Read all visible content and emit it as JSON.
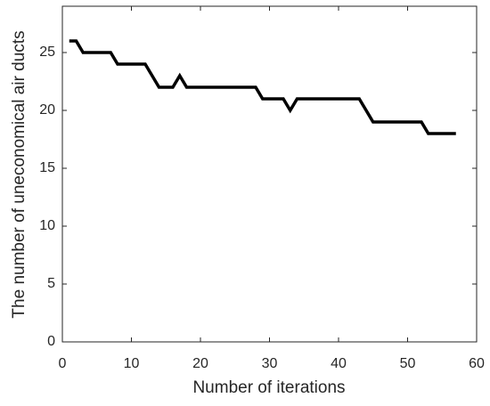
{
  "chart_data": {
    "type": "line",
    "xlabel": "Number of iterations",
    "ylabel": "The number of uneconomical air ducts",
    "x": [
      1,
      2,
      3,
      4,
      5,
      6,
      7,
      8,
      9,
      10,
      11,
      12,
      13,
      14,
      15,
      16,
      17,
      18,
      19,
      20,
      21,
      22,
      23,
      24,
      25,
      26,
      27,
      28,
      29,
      30,
      31,
      32,
      33,
      34,
      35,
      36,
      37,
      38,
      39,
      40,
      41,
      42,
      43,
      44,
      45,
      46,
      47,
      48,
      49,
      50,
      51,
      52,
      53,
      54,
      55,
      56,
      57
    ],
    "series": [
      {
        "color": "#000000",
        "values": [
          26,
          26,
          25,
          25,
          25,
          25,
          25,
          24,
          24,
          24,
          24,
          24,
          23,
          22,
          22,
          22,
          23,
          22,
          22,
          22,
          22,
          22,
          22,
          22,
          22,
          22,
          22,
          22,
          21,
          21,
          21,
          21,
          20,
          21,
          21,
          21,
          21,
          21,
          21,
          21,
          21,
          21,
          21,
          20,
          19,
          19,
          19,
          19,
          19,
          19,
          19,
          19,
          18,
          18,
          18,
          18,
          18
        ]
      }
    ],
    "xlim": [
      0,
      60
    ],
    "xticks": [
      0,
      10,
      20,
      30,
      40,
      50,
      60
    ],
    "ylim": [
      0,
      29
    ],
    "yticks": [
      0,
      5,
      10,
      15,
      20,
      25
    ]
  }
}
